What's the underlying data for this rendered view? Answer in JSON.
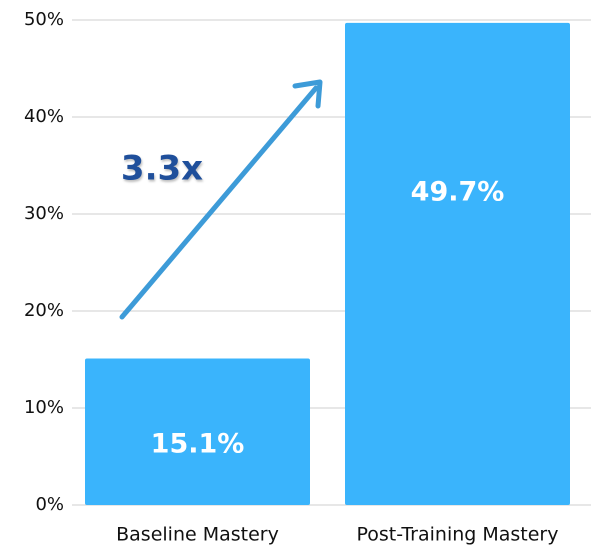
{
  "chart_data": {
    "type": "bar",
    "categories": [
      "Baseline Mastery",
      "Post-Training Mastery"
    ],
    "values": [
      15.1,
      49.7
    ],
    "value_labels": [
      "15.1%",
      "49.7%"
    ],
    "color": "#3ab4fc",
    "ylim": [
      0,
      50
    ],
    "yticks": [
      {
        "value": 0,
        "label": "0%"
      },
      {
        "value": 10,
        "label": "10%"
      },
      {
        "value": 20,
        "label": "20%"
      },
      {
        "value": 30,
        "label": "30%"
      },
      {
        "value": 40,
        "label": "40%"
      },
      {
        "value": 50,
        "label": "50%"
      }
    ],
    "grid": true,
    "annotation": "3.3x"
  }
}
